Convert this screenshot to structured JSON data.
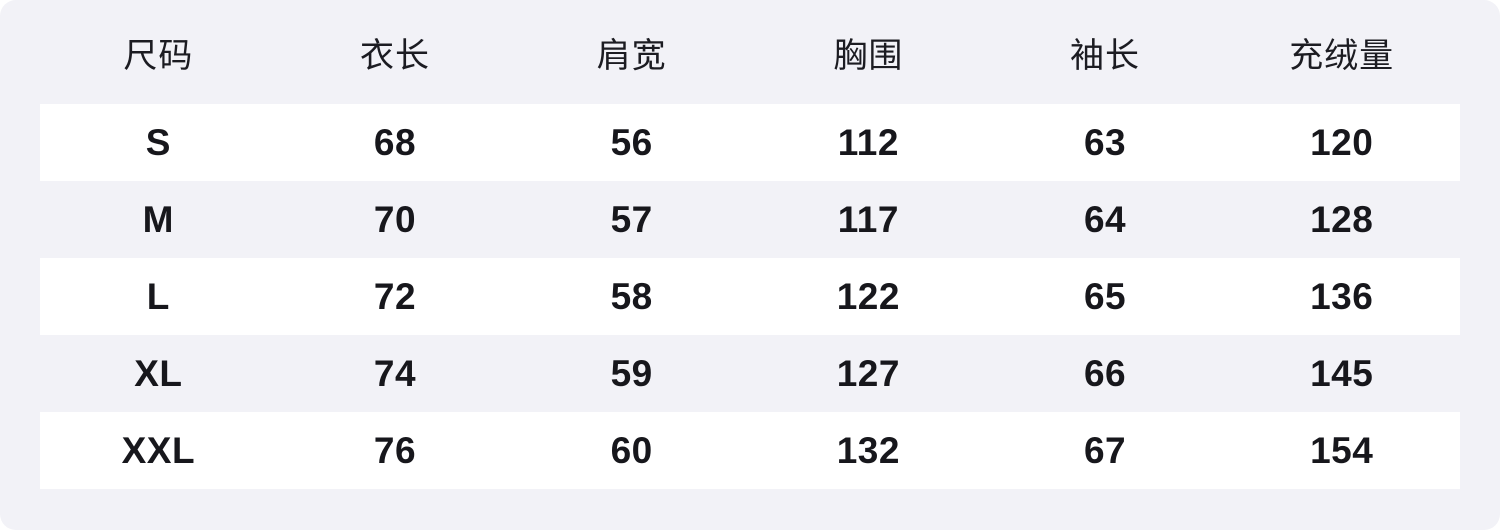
{
  "colors": {
    "card_background": "#f2f2f7",
    "stripe_background": "#ffffff",
    "text": "#17171c"
  },
  "chart_data": {
    "type": "table",
    "columns": [
      "尺码",
      "衣长",
      "肩宽",
      "胸围",
      "袖长",
      "充绒量"
    ],
    "rows": [
      [
        "S",
        "68",
        "56",
        "112",
        "63",
        "120"
      ],
      [
        "M",
        "70",
        "57",
        "117",
        "64",
        "128"
      ],
      [
        "L",
        "72",
        "58",
        "122",
        "65",
        "136"
      ],
      [
        "XL",
        "74",
        "59",
        "127",
        "66",
        "145"
      ],
      [
        "XXL",
        "76",
        "60",
        "132",
        "67",
        "154"
      ]
    ],
    "layout": {
      "striped_rows": [
        0,
        2,
        4
      ],
      "grid": false,
      "header_position": "top"
    }
  }
}
